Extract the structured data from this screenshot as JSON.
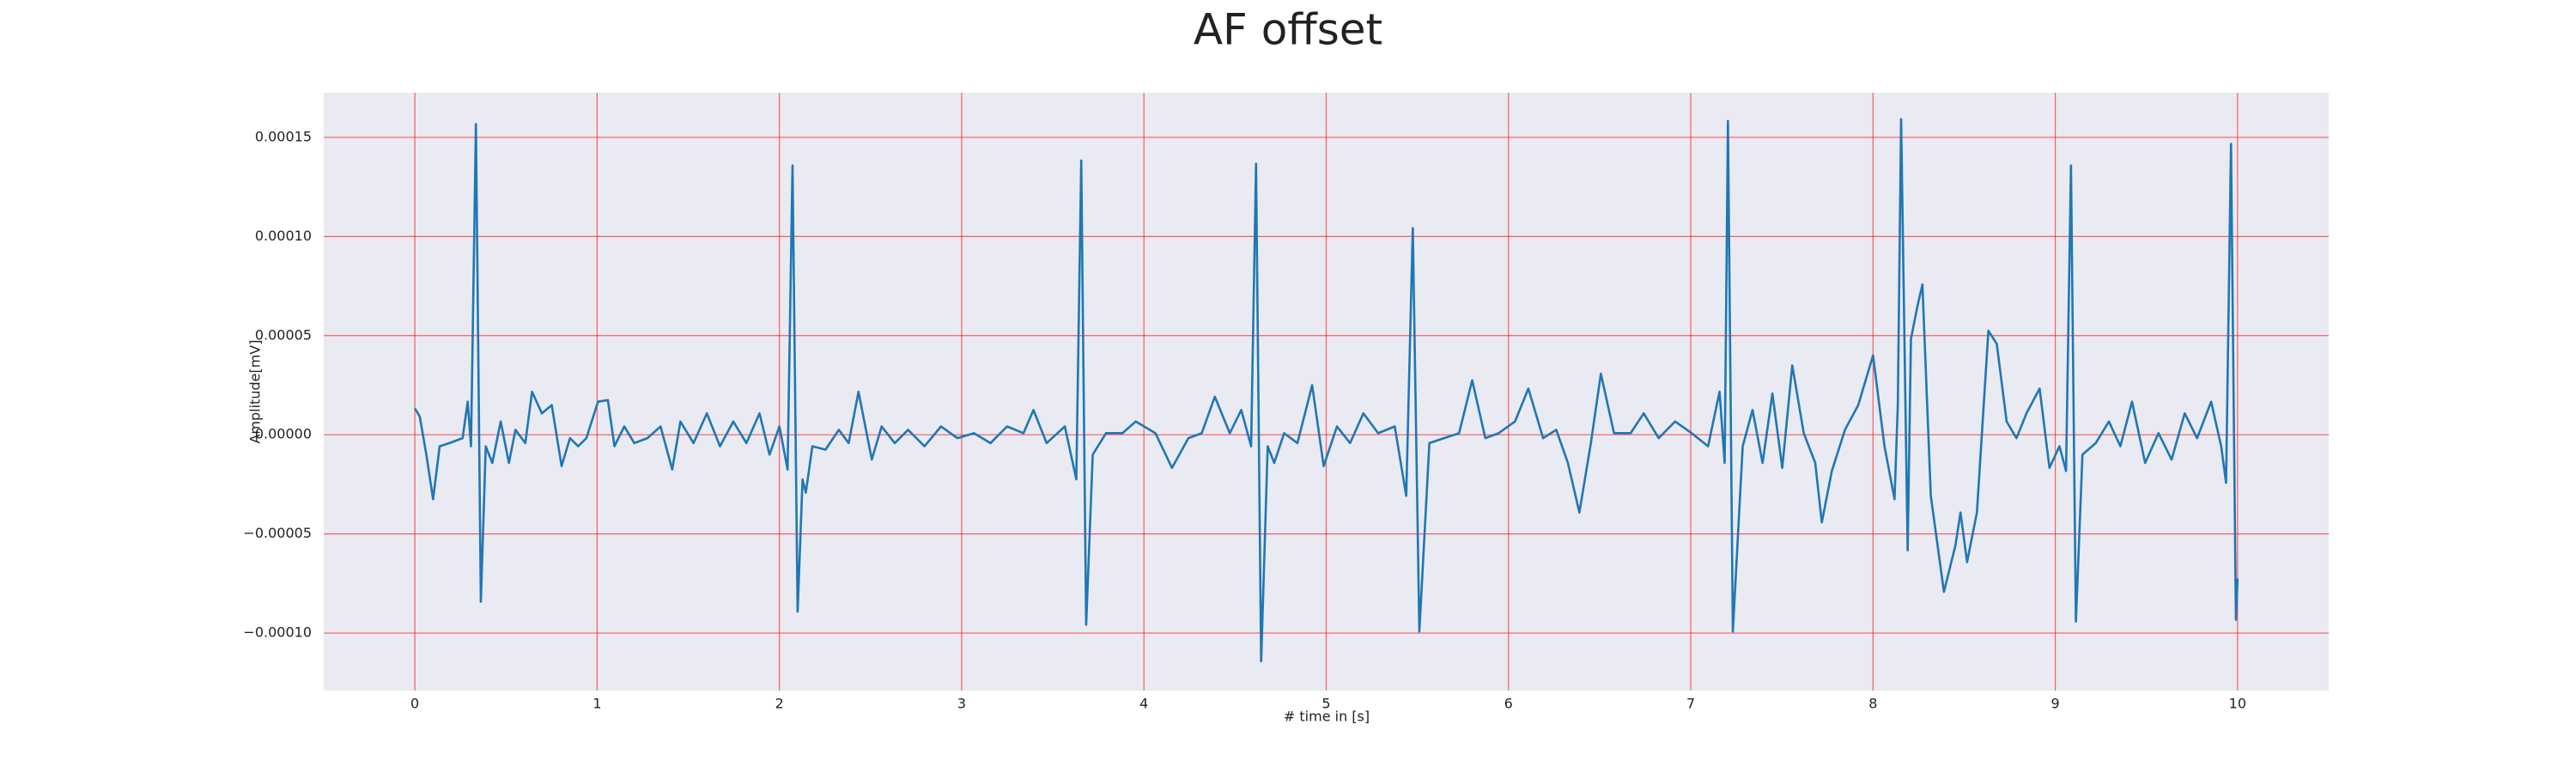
{
  "chart_data": {
    "type": "line",
    "title": "AF offset",
    "xlabel": "# time in [s]",
    "ylabel": "Amplitude[mV]",
    "color": "#1f77b4",
    "grid": true,
    "grid_color": "#ff0000",
    "xlim": [
      -0.5,
      10.5
    ],
    "xticks": [
      0,
      1,
      2,
      3,
      4,
      5,
      6,
      7,
      8,
      9,
      10
    ],
    "ylim": [
      -0.000129,
      0.0001725
    ],
    "yticks": [
      {
        "value": -0.0001,
        "label": "−0.00010"
      },
      {
        "value": -5e-05,
        "label": "−0.00005"
      },
      {
        "value": 0,
        "label": "0.00000"
      },
      5e-05,
      {
        "value": 0.0001,
        "label": "0.00010"
      },
      0.00015
    ],
    "x": [
      0,
      0.027,
      0.063,
      0.1,
      0.136,
      0.19,
      0.262,
      0.29,
      0.308,
      0.335,
      0.362,
      0.389,
      0.425,
      0.471,
      0.516,
      0.552,
      0.606,
      0.643,
      0.697,
      0.751,
      0.805,
      0.851,
      0.896,
      0.941,
      1.005,
      1.059,
      1.095,
      1.149,
      1.204,
      1.276,
      1.348,
      1.412,
      1.457,
      1.529,
      1.602,
      1.674,
      1.747,
      1.819,
      1.891,
      1.946,
      2.0,
      2.045,
      2.072,
      2.1,
      2.127,
      2.145,
      2.181,
      2.253,
      2.326,
      2.38,
      2.434,
      2.507,
      2.561,
      2.633,
      2.706,
      2.796,
      2.887,
      2.977,
      3.068,
      3.158,
      3.249,
      3.339,
      3.394,
      3.466,
      3.566,
      3.629,
      3.656,
      3.683,
      3.719,
      3.792,
      3.882,
      3.955,
      4.063,
      4.154,
      4.244,
      4.317,
      4.389,
      4.471,
      4.534,
      4.588,
      4.615,
      4.643,
      4.679,
      4.715,
      4.769,
      4.842,
      4.923,
      4.986,
      5.059,
      5.131,
      5.204,
      5.285,
      5.376,
      5.439,
      5.475,
      5.511,
      5.566,
      5.647,
      5.729,
      5.801,
      5.873,
      5.946,
      6.036,
      6.109,
      6.19,
      6.262,
      6.326,
      6.389,
      6.452,
      6.507,
      6.579,
      6.67,
      6.742,
      6.824,
      6.914,
      7.005,
      7.095,
      7.158,
      7.186,
      7.204,
      7.231,
      7.285,
      7.339,
      7.394,
      7.448,
      7.502,
      7.557,
      7.62,
      7.683,
      7.719,
      7.774,
      7.846,
      7.919,
      8.0,
      8.063,
      8.118,
      8.136,
      8.154,
      8.19,
      8.208,
      8.244,
      8.271,
      8.317,
      8.389,
      8.452,
      8.48,
      8.516,
      8.57,
      8.633,
      8.679,
      8.733,
      8.787,
      8.842,
      8.914,
      8.968,
      9.023,
      9.059,
      9.086,
      9.113,
      9.149,
      9.222,
      9.294,
      9.357,
      9.421,
      9.493,
      9.566,
      9.638,
      9.71,
      9.778,
      9.855,
      9.91,
      9.937,
      9.964,
      9.991,
      10.0
    ],
    "values": [
      1.33e-05,
      9.2e-06,
      -1e-05,
      -3.25e-05,
      -5.8e-06,
      -4.2e-06,
      -1.7e-06,
      1.67e-05,
      -5.8e-06,
      0.0001567,
      -8.42e-05,
      -5.8e-06,
      -1.42e-05,
      6.7e-06,
      -1.42e-05,
      2.5e-06,
      -4.2e-06,
      2.17e-05,
      1.08e-05,
      1.5e-05,
      -1.58e-05,
      -1.7e-06,
      -5.8e-06,
      -1.7e-06,
      1.67e-05,
      1.75e-05,
      -5.8e-06,
      4.2e-06,
      -4.2e-06,
      -1.7e-06,
      4.2e-06,
      -1.75e-05,
      6.7e-06,
      -4.2e-06,
      1.08e-05,
      -5.8e-06,
      6.7e-06,
      -4.2e-06,
      1.08e-05,
      -1e-05,
      4.2e-06,
      -1.75e-05,
      0.0001358,
      -8.92e-05,
      -2.25e-05,
      -2.92e-05,
      -5.8e-06,
      -7.5e-06,
      2.5e-06,
      -4.2e-06,
      2.17e-05,
      -1.25e-05,
      4.2e-06,
      -4.2e-06,
      2.5e-06,
      -5.8e-06,
      4.2e-06,
      -1.7e-06,
      8e-07,
      -4.2e-06,
      4.2e-06,
      8e-07,
      1.25e-05,
      -4.2e-06,
      4.2e-06,
      -2.25e-05,
      0.0001383,
      -9.58e-05,
      -1e-05,
      8e-07,
      8e-07,
      6.7e-06,
      8e-07,
      -1.67e-05,
      -1.7e-06,
      8e-07,
      1.92e-05,
      8e-07,
      1.25e-05,
      -5.8e-06,
      0.0001367,
      -0.0001142,
      -5.8e-06,
      -1.42e-05,
      8e-07,
      -4.2e-06,
      2.5e-05,
      -1.58e-05,
      4.2e-06,
      -4.2e-06,
      1.08e-05,
      8e-07,
      4.2e-06,
      -3.08e-05,
      0.0001042,
      -9.92e-05,
      -4.2e-06,
      -1.7e-06,
      8e-07,
      2.75e-05,
      -1.7e-06,
      8e-07,
      6.7e-06,
      2.33e-05,
      -1.7e-06,
      2.5e-06,
      -1.42e-05,
      -3.92e-05,
      -4.2e-06,
      3.08e-05,
      8e-07,
      8e-07,
      1.08e-05,
      -1.7e-06,
      6.7e-06,
      8e-07,
      -5.8e-06,
      2.17e-05,
      -1.42e-05,
      0.0001583,
      -9.92e-05,
      -5.8e-06,
      1.25e-05,
      -1.42e-05,
      2.08e-05,
      -1.67e-05,
      3.5e-05,
      8e-07,
      -1.42e-05,
      -4.42e-05,
      -1.83e-05,
      2.5e-06,
      1.5e-05,
      4e-05,
      -5.8e-06,
      -3.25e-05,
      1.5e-05,
      0.0001592,
      -5.83e-05,
      4.83e-05,
      6.5e-05,
      7.58e-05,
      -3.08e-05,
      -7.92e-05,
      -5.58e-05,
      -3.92e-05,
      -6.42e-05,
      -3.92e-05,
      5.25e-05,
      4.58e-05,
      6.7e-06,
      -1.7e-06,
      1.08e-05,
      2.33e-05,
      -1.67e-05,
      -5.8e-06,
      -1.83e-05,
      0.0001358,
      -9.42e-05,
      -1e-05,
      -4.2e-06,
      6.7e-06,
      -5.8e-06,
      1.67e-05,
      -1.42e-05,
      8e-07,
      -1.25e-05,
      1.08e-05,
      -1.7e-06,
      1.67e-05,
      -5.8e-06,
      -2.42e-05,
      0.0001467,
      -9.33e-05,
      -7.25e-05
    ]
  }
}
